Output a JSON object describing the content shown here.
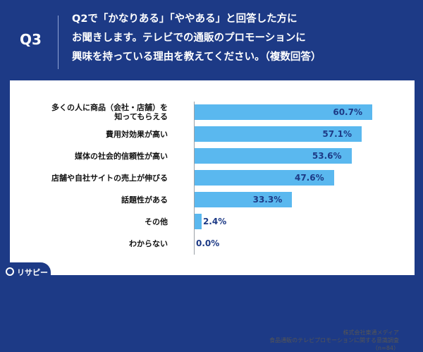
{
  "header": {
    "question_number": "Q3",
    "question_lines": [
      "Q2で「かなりある」「ややある」と回答した方に",
      "お聞きします。テレビでの通販のプロモーションに",
      "興味を持っている理由を教えてください。（複数回答）"
    ]
  },
  "chart_data": {
    "type": "bar",
    "orientation": "horizontal",
    "categories": [
      [
        "多くの人に商品（会社・店舗）を",
        "知ってもらえる"
      ],
      [
        "費用対効果が高い"
      ],
      [
        "媒体の社会的信頼性が高い"
      ],
      [
        "店舗や自社サイトの売上が伸びる"
      ],
      [
        "話題性がある"
      ],
      [
        "その他"
      ],
      [
        "わからない"
      ]
    ],
    "values": [
      60.7,
      57.1,
      53.6,
      47.6,
      33.3,
      2.4,
      0.0
    ],
    "value_labels": [
      "60.7%",
      "57.1%",
      "53.6%",
      "47.6%",
      "33.3%",
      "2.4%",
      "0.0%"
    ],
    "xlim": [
      0,
      100
    ],
    "bar_color": "#5ab8ef",
    "label_color": "#1d3a86"
  },
  "source": {
    "lines": [
      "株式会社東通メディア",
      "食品通販のテレビプロモーションに関する意識調査",
      "（n=84）"
    ]
  },
  "brand": {
    "logo_text": "リサピー",
    "logo_icon": "location-pin-icon"
  }
}
